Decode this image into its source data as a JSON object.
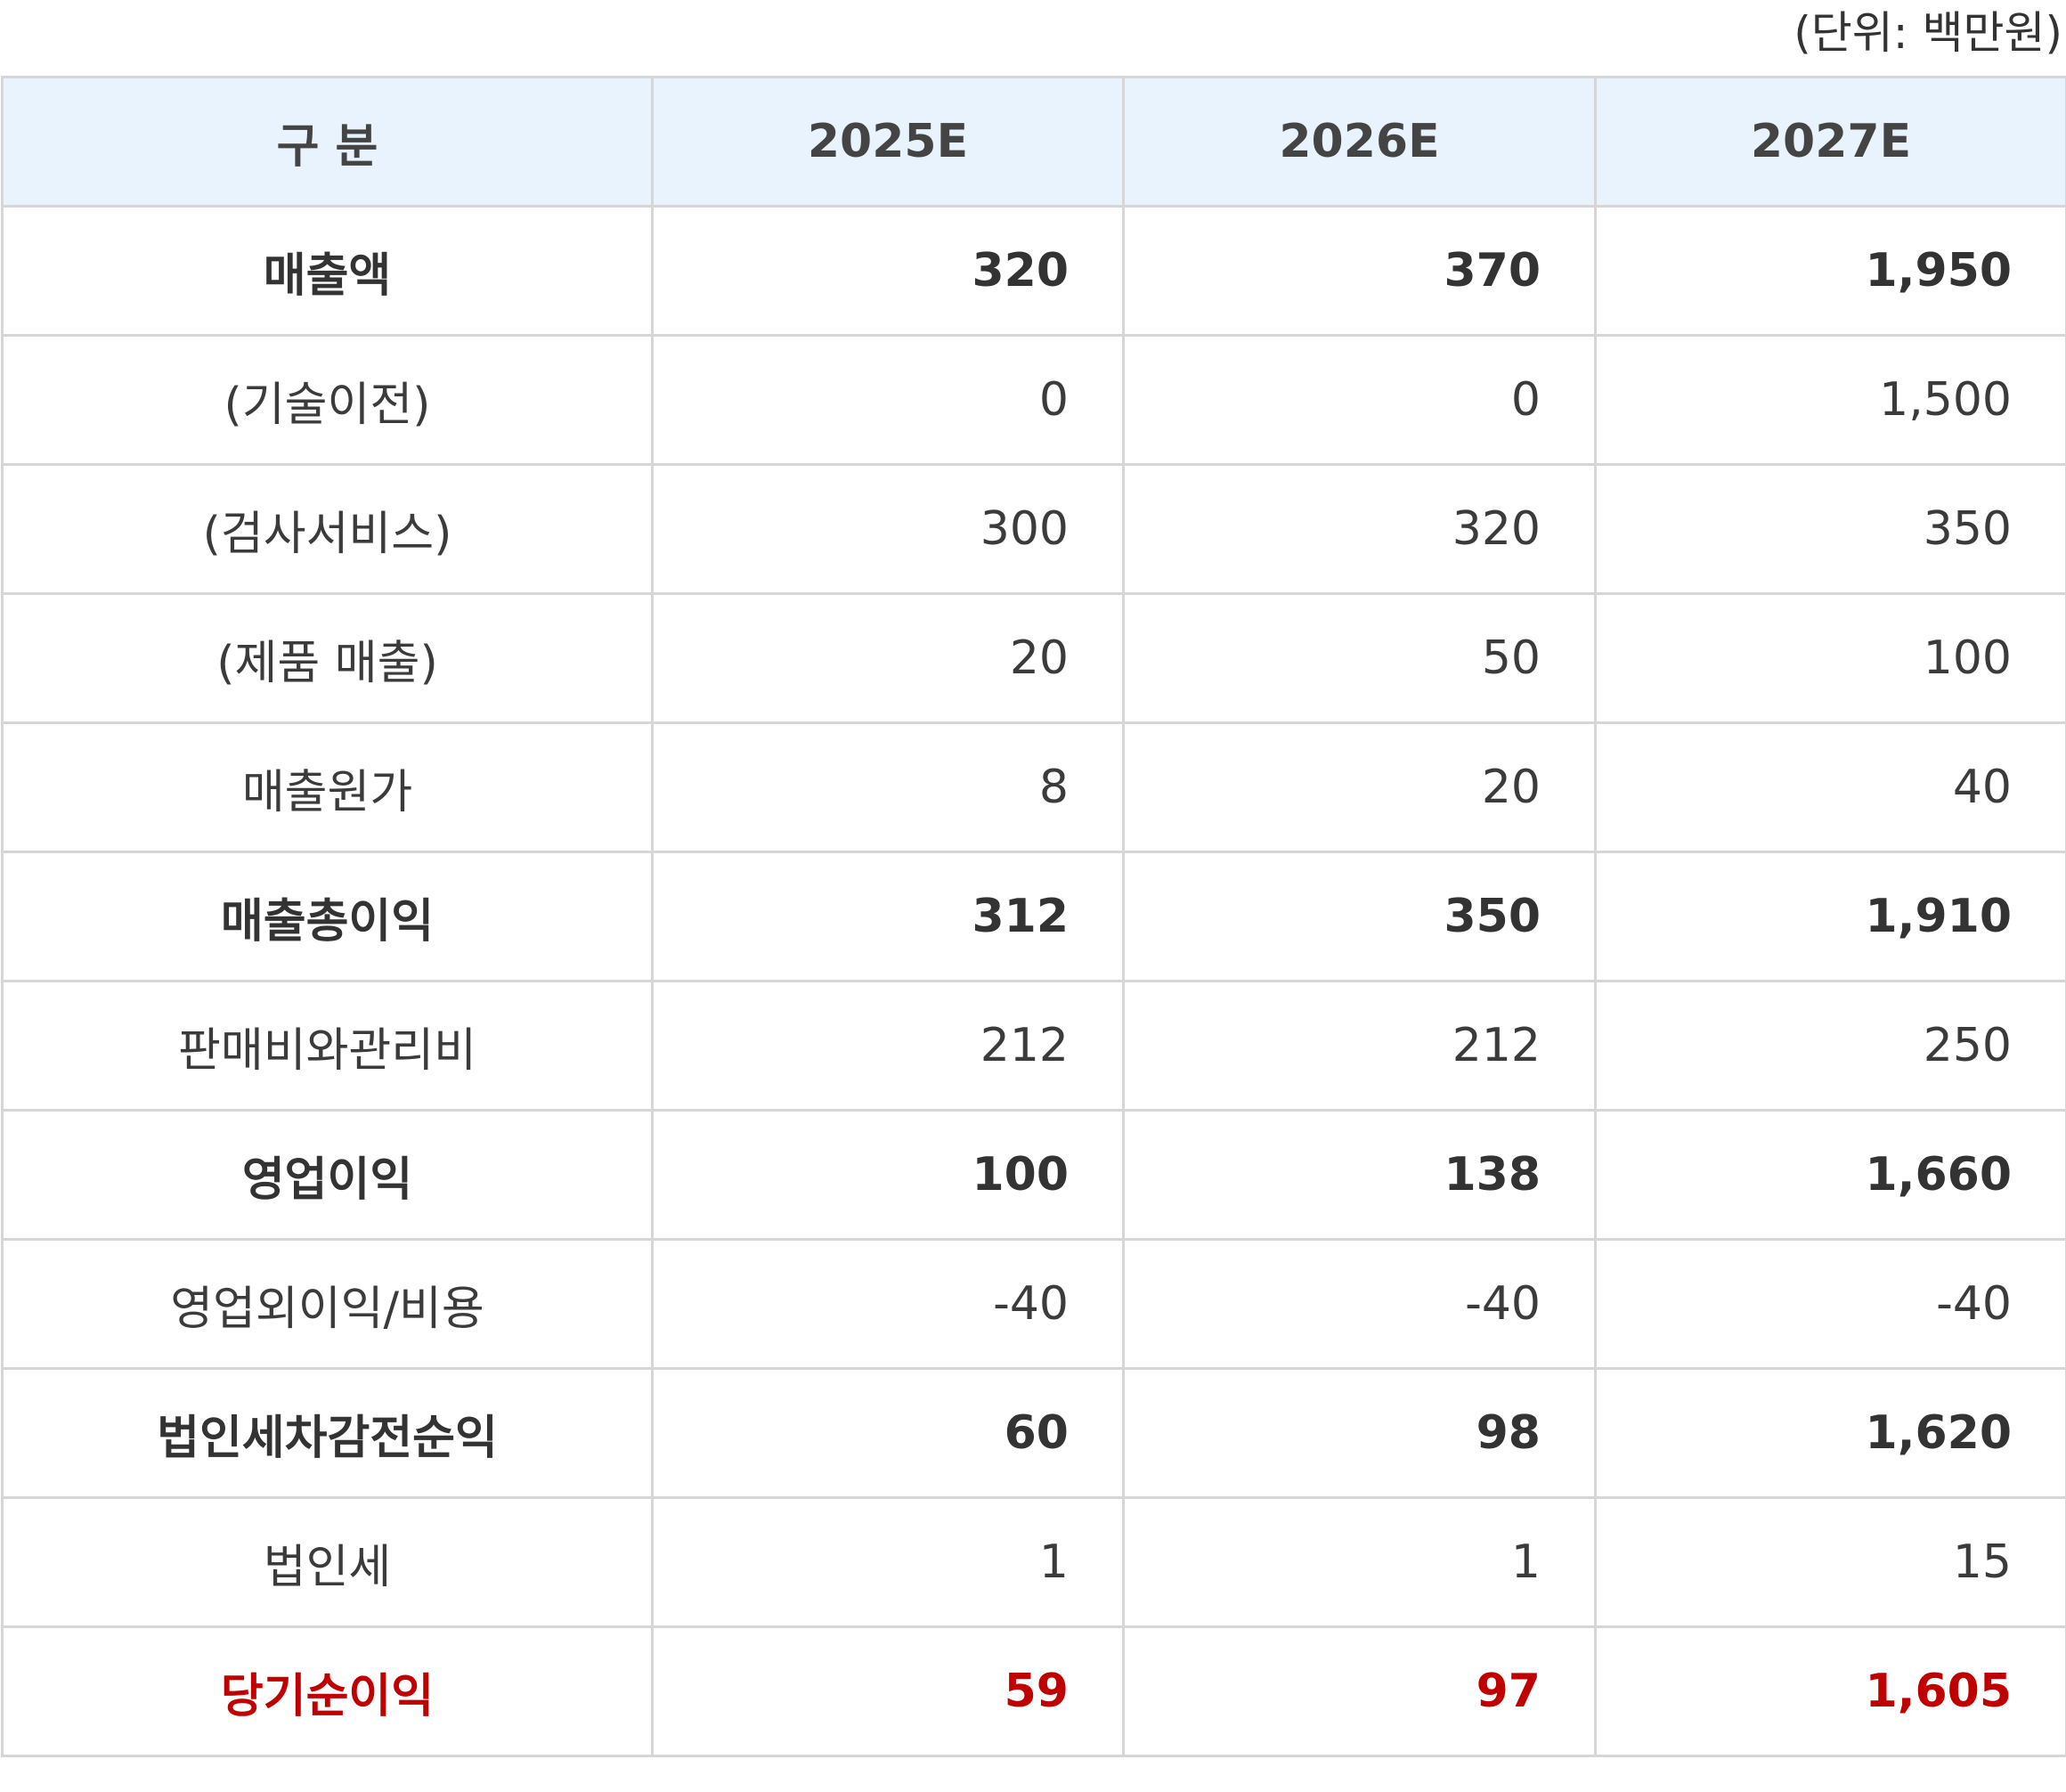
{
  "unit_note": "(단위: 백만원)",
  "header": {
    "category": "구 분",
    "years": [
      "2025E",
      "2026E",
      "2027E"
    ]
  },
  "rows": [
    {
      "label": "매출액",
      "values": [
        "320",
        "370",
        "1,950"
      ],
      "style": "bold"
    },
    {
      "label": "(기술이전)",
      "values": [
        "0",
        "0",
        "1,500"
      ],
      "style": "normal"
    },
    {
      "label": "(검사서비스)",
      "values": [
        "300",
        "320",
        "350"
      ],
      "style": "normal"
    },
    {
      "label": "(제품 매출)",
      "values": [
        "20",
        "50",
        "100"
      ],
      "style": "normal"
    },
    {
      "label": "매출원가",
      "values": [
        "8",
        "20",
        "40"
      ],
      "style": "normal"
    },
    {
      "label": "매출총이익",
      "values": [
        "312",
        "350",
        "1,910"
      ],
      "style": "bold"
    },
    {
      "label": "판매비와관리비",
      "values": [
        "212",
        "212",
        "250"
      ],
      "style": "normal"
    },
    {
      "label": "영업이익",
      "values": [
        "100",
        "138",
        "1,660"
      ],
      "style": "bold"
    },
    {
      "label": "영업외이익/비용",
      "values": [
        "-40",
        "-40",
        "-40"
      ],
      "style": "normal"
    },
    {
      "label": "법인세차감전순익",
      "values": [
        "60",
        "98",
        "1,620"
      ],
      "style": "bold"
    },
    {
      "label": "법인세",
      "values": [
        "1",
        "1",
        "15"
      ],
      "style": "normal"
    },
    {
      "label": "당기순이익",
      "values": [
        "59",
        "97",
        "1,605"
      ],
      "style": "red"
    }
  ],
  "colors": {
    "header_bg": "#e9f3fd",
    "grid": "#d6d6d6",
    "text": "#333333",
    "highlight": "#c00000"
  }
}
